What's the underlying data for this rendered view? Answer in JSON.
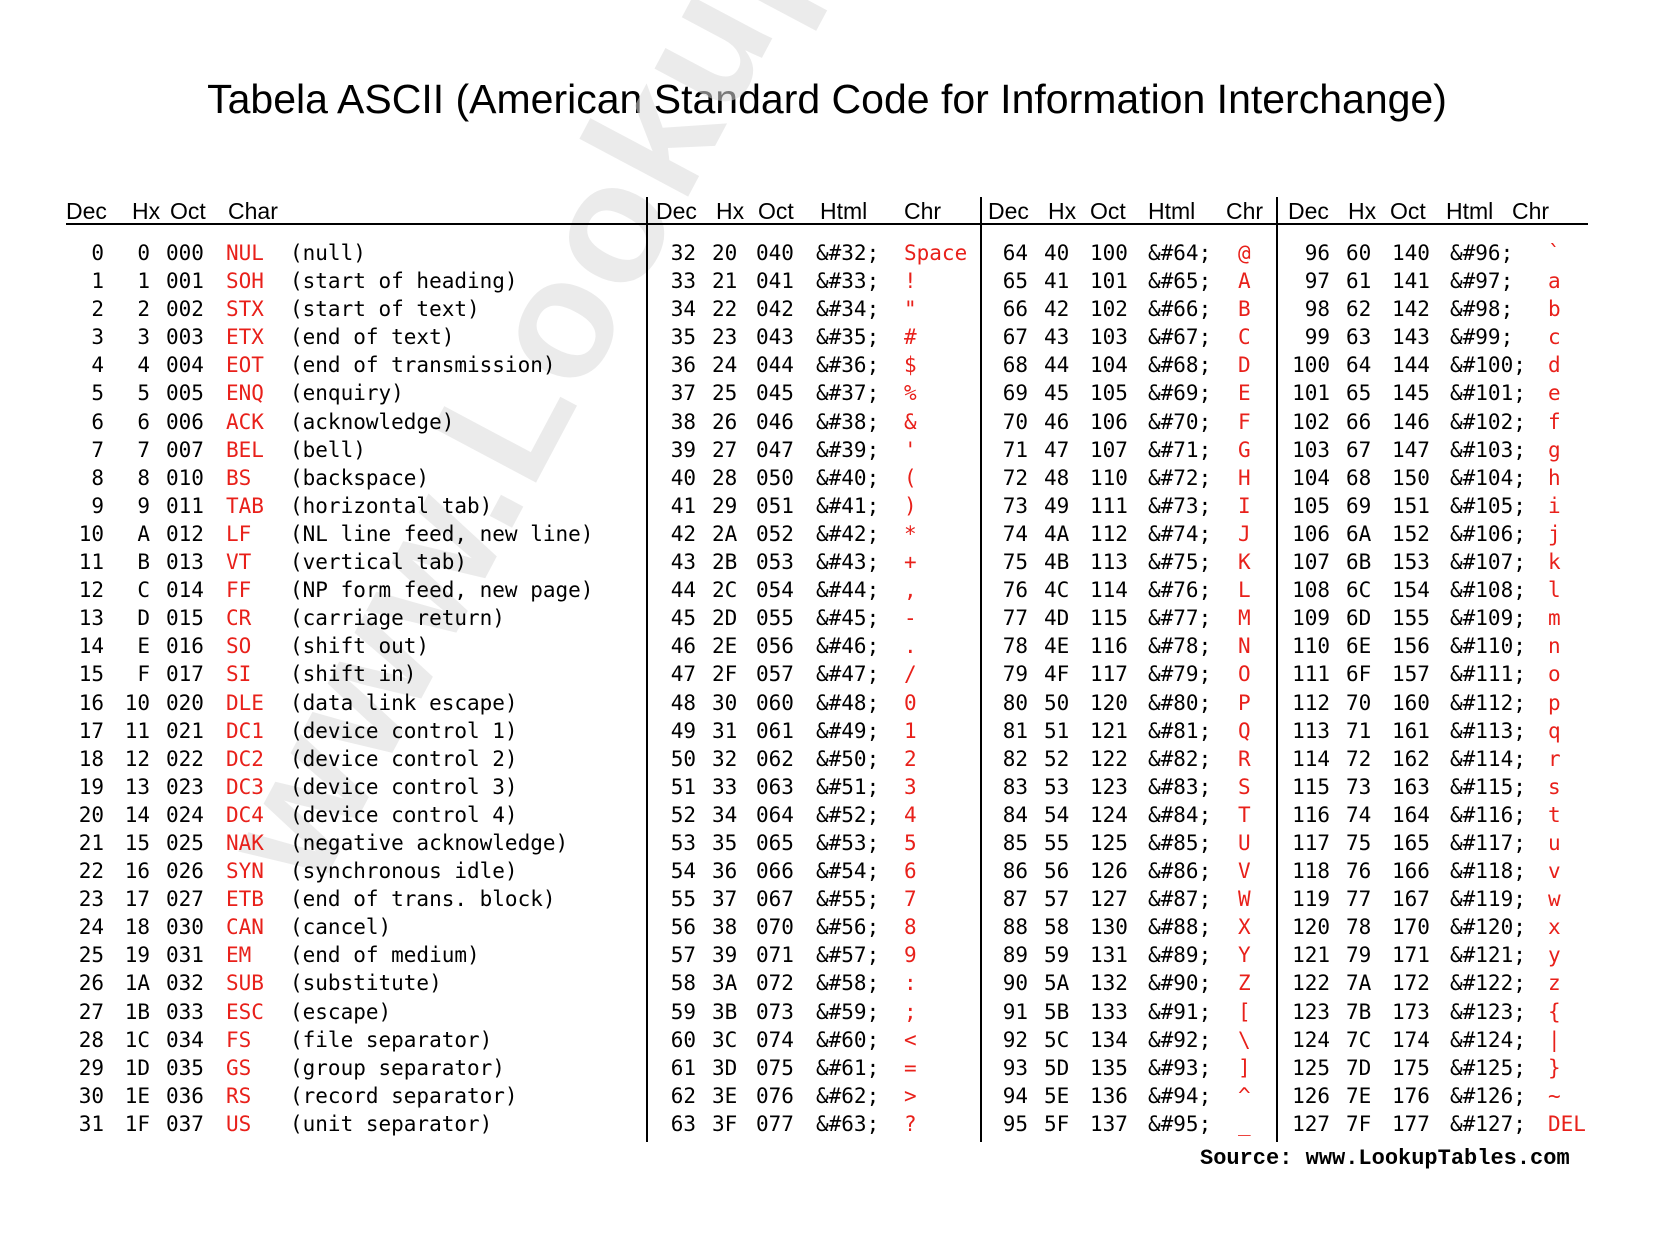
{
  "title": "Tabela ASCII (American Standard Code for Information Interchange)",
  "headers": {
    "g1": [
      "Dec",
      "Hx",
      "Oct",
      "Char"
    ],
    "g2": [
      "Dec",
      "Hx",
      "Oct",
      "Html",
      "Chr"
    ],
    "g3": [
      "Dec",
      "Hx",
      "Oct",
      "Html",
      "Chr"
    ],
    "g4": [
      "Dec",
      "Hx",
      "Oct",
      "Html",
      "Chr"
    ]
  },
  "control_rows": [
    [
      "0",
      "0",
      "000",
      "NUL",
      "(null)"
    ],
    [
      "1",
      "1",
      "001",
      "SOH",
      "(start of heading)"
    ],
    [
      "2",
      "2",
      "002",
      "STX",
      "(start of text)"
    ],
    [
      "3",
      "3",
      "003",
      "ETX",
      "(end of text)"
    ],
    [
      "4",
      "4",
      "004",
      "EOT",
      "(end of transmission)"
    ],
    [
      "5",
      "5",
      "005",
      "ENQ",
      "(enquiry)"
    ],
    [
      "6",
      "6",
      "006",
      "ACK",
      "(acknowledge)"
    ],
    [
      "7",
      "7",
      "007",
      "BEL",
      "(bell)"
    ],
    [
      "8",
      "8",
      "010",
      "BS",
      "(backspace)"
    ],
    [
      "9",
      "9",
      "011",
      "TAB",
      "(horizontal tab)"
    ],
    [
      "10",
      "A",
      "012",
      "LF",
      "(NL line feed, new line)"
    ],
    [
      "11",
      "B",
      "013",
      "VT",
      "(vertical tab)"
    ],
    [
      "12",
      "C",
      "014",
      "FF",
      "(NP form feed, new page)"
    ],
    [
      "13",
      "D",
      "015",
      "CR",
      "(carriage return)"
    ],
    [
      "14",
      "E",
      "016",
      "SO",
      "(shift out)"
    ],
    [
      "15",
      "F",
      "017",
      "SI",
      "(shift in)"
    ],
    [
      "16",
      "10",
      "020",
      "DLE",
      "(data link escape)"
    ],
    [
      "17",
      "11",
      "021",
      "DC1",
      "(device control 1)"
    ],
    [
      "18",
      "12",
      "022",
      "DC2",
      "(device control 2)"
    ],
    [
      "19",
      "13",
      "023",
      "DC3",
      "(device control 3)"
    ],
    [
      "20",
      "14",
      "024",
      "DC4",
      "(device control 4)"
    ],
    [
      "21",
      "15",
      "025",
      "NAK",
      "(negative acknowledge)"
    ],
    [
      "22",
      "16",
      "026",
      "SYN",
      "(synchronous idle)"
    ],
    [
      "23",
      "17",
      "027",
      "ETB",
      "(end of trans. block)"
    ],
    [
      "24",
      "18",
      "030",
      "CAN",
      "(cancel)"
    ],
    [
      "25",
      "19",
      "031",
      "EM",
      "(end of medium)"
    ],
    [
      "26",
      "1A",
      "032",
      "SUB",
      "(substitute)"
    ],
    [
      "27",
      "1B",
      "033",
      "ESC",
      "(escape)"
    ],
    [
      "28",
      "1C",
      "034",
      "FS",
      "(file separator)"
    ],
    [
      "29",
      "1D",
      "035",
      "GS",
      "(group separator)"
    ],
    [
      "30",
      "1E",
      "036",
      "RS",
      "(record separator)"
    ],
    [
      "31",
      "1F",
      "037",
      "US",
      "(unit separator)"
    ]
  ],
  "group2_rows": [
    [
      "32",
      "20",
      "040",
      "&#32;",
      "Space"
    ],
    [
      "33",
      "21",
      "041",
      "&#33;",
      "!"
    ],
    [
      "34",
      "22",
      "042",
      "&#34;",
      "\""
    ],
    [
      "35",
      "23",
      "043",
      "&#35;",
      "#"
    ],
    [
      "36",
      "24",
      "044",
      "&#36;",
      "$"
    ],
    [
      "37",
      "25",
      "045",
      "&#37;",
      "%"
    ],
    [
      "38",
      "26",
      "046",
      "&#38;",
      "&"
    ],
    [
      "39",
      "27",
      "047",
      "&#39;",
      "'"
    ],
    [
      "40",
      "28",
      "050",
      "&#40;",
      "("
    ],
    [
      "41",
      "29",
      "051",
      "&#41;",
      ")"
    ],
    [
      "42",
      "2A",
      "052",
      "&#42;",
      "*"
    ],
    [
      "43",
      "2B",
      "053",
      "&#43;",
      "+"
    ],
    [
      "44",
      "2C",
      "054",
      "&#44;",
      ","
    ],
    [
      "45",
      "2D",
      "055",
      "&#45;",
      "-"
    ],
    [
      "46",
      "2E",
      "056",
      "&#46;",
      "."
    ],
    [
      "47",
      "2F",
      "057",
      "&#47;",
      "/"
    ],
    [
      "48",
      "30",
      "060",
      "&#48;",
      "0"
    ],
    [
      "49",
      "31",
      "061",
      "&#49;",
      "1"
    ],
    [
      "50",
      "32",
      "062",
      "&#50;",
      "2"
    ],
    [
      "51",
      "33",
      "063",
      "&#51;",
      "3"
    ],
    [
      "52",
      "34",
      "064",
      "&#52;",
      "4"
    ],
    [
      "53",
      "35",
      "065",
      "&#53;",
      "5"
    ],
    [
      "54",
      "36",
      "066",
      "&#54;",
      "6"
    ],
    [
      "55",
      "37",
      "067",
      "&#55;",
      "7"
    ],
    [
      "56",
      "38",
      "070",
      "&#56;",
      "8"
    ],
    [
      "57",
      "39",
      "071",
      "&#57;",
      "9"
    ],
    [
      "58",
      "3A",
      "072",
      "&#58;",
      ":"
    ],
    [
      "59",
      "3B",
      "073",
      "&#59;",
      ";"
    ],
    [
      "60",
      "3C",
      "074",
      "&#60;",
      "<"
    ],
    [
      "61",
      "3D",
      "075",
      "&#61;",
      "="
    ],
    [
      "62",
      "3E",
      "076",
      "&#62;",
      ">"
    ],
    [
      "63",
      "3F",
      "077",
      "&#63;",
      "?"
    ]
  ],
  "group3_rows": [
    [
      "64",
      "40",
      "100",
      "&#64;",
      "@"
    ],
    [
      "65",
      "41",
      "101",
      "&#65;",
      "A"
    ],
    [
      "66",
      "42",
      "102",
      "&#66;",
      "B"
    ],
    [
      "67",
      "43",
      "103",
      "&#67;",
      "C"
    ],
    [
      "68",
      "44",
      "104",
      "&#68;",
      "D"
    ],
    [
      "69",
      "45",
      "105",
      "&#69;",
      "E"
    ],
    [
      "70",
      "46",
      "106",
      "&#70;",
      "F"
    ],
    [
      "71",
      "47",
      "107",
      "&#71;",
      "G"
    ],
    [
      "72",
      "48",
      "110",
      "&#72;",
      "H"
    ],
    [
      "73",
      "49",
      "111",
      "&#73;",
      "I"
    ],
    [
      "74",
      "4A",
      "112",
      "&#74;",
      "J"
    ],
    [
      "75",
      "4B",
      "113",
      "&#75;",
      "K"
    ],
    [
      "76",
      "4C",
      "114",
      "&#76;",
      "L"
    ],
    [
      "77",
      "4D",
      "115",
      "&#77;",
      "M"
    ],
    [
      "78",
      "4E",
      "116",
      "&#78;",
      "N"
    ],
    [
      "79",
      "4F",
      "117",
      "&#79;",
      "O"
    ],
    [
      "80",
      "50",
      "120",
      "&#80;",
      "P"
    ],
    [
      "81",
      "51",
      "121",
      "&#81;",
      "Q"
    ],
    [
      "82",
      "52",
      "122",
      "&#82;",
      "R"
    ],
    [
      "83",
      "53",
      "123",
      "&#83;",
      "S"
    ],
    [
      "84",
      "54",
      "124",
      "&#84;",
      "T"
    ],
    [
      "85",
      "55",
      "125",
      "&#85;",
      "U"
    ],
    [
      "86",
      "56",
      "126",
      "&#86;",
      "V"
    ],
    [
      "87",
      "57",
      "127",
      "&#87;",
      "W"
    ],
    [
      "88",
      "58",
      "130",
      "&#88;",
      "X"
    ],
    [
      "89",
      "59",
      "131",
      "&#89;",
      "Y"
    ],
    [
      "90",
      "5A",
      "132",
      "&#90;",
      "Z"
    ],
    [
      "91",
      "5B",
      "133",
      "&#91;",
      "["
    ],
    [
      "92",
      "5C",
      "134",
      "&#92;",
      "\\"
    ],
    [
      "93",
      "5D",
      "135",
      "&#93;",
      "]"
    ],
    [
      "94",
      "5E",
      "136",
      "&#94;",
      "^"
    ],
    [
      "95",
      "5F",
      "137",
      "&#95;",
      "_"
    ]
  ],
  "group4_rows": [
    [
      "96",
      "60",
      "140",
      "&#96;",
      "`"
    ],
    [
      "97",
      "61",
      "141",
      "&#97;",
      "a"
    ],
    [
      "98",
      "62",
      "142",
      "&#98;",
      "b"
    ],
    [
      "99",
      "63",
      "143",
      "&#99;",
      "c"
    ],
    [
      "100",
      "64",
      "144",
      "&#100;",
      "d"
    ],
    [
      "101",
      "65",
      "145",
      "&#101;",
      "e"
    ],
    [
      "102",
      "66",
      "146",
      "&#102;",
      "f"
    ],
    [
      "103",
      "67",
      "147",
      "&#103;",
      "g"
    ],
    [
      "104",
      "68",
      "150",
      "&#104;",
      "h"
    ],
    [
      "105",
      "69",
      "151",
      "&#105;",
      "i"
    ],
    [
      "106",
      "6A",
      "152",
      "&#106;",
      "j"
    ],
    [
      "107",
      "6B",
      "153",
      "&#107;",
      "k"
    ],
    [
      "108",
      "6C",
      "154",
      "&#108;",
      "l"
    ],
    [
      "109",
      "6D",
      "155",
      "&#109;",
      "m"
    ],
    [
      "110",
      "6E",
      "156",
      "&#110;",
      "n"
    ],
    [
      "111",
      "6F",
      "157",
      "&#111;",
      "o"
    ],
    [
      "112",
      "70",
      "160",
      "&#112;",
      "p"
    ],
    [
      "113",
      "71",
      "161",
      "&#113;",
      "q"
    ],
    [
      "114",
      "72",
      "162",
      "&#114;",
      "r"
    ],
    [
      "115",
      "73",
      "163",
      "&#115;",
      "s"
    ],
    [
      "116",
      "74",
      "164",
      "&#116;",
      "t"
    ],
    [
      "117",
      "75",
      "165",
      "&#117;",
      "u"
    ],
    [
      "118",
      "76",
      "166",
      "&#118;",
      "v"
    ],
    [
      "119",
      "77",
      "167",
      "&#119;",
      "w"
    ],
    [
      "120",
      "78",
      "170",
      "&#120;",
      "x"
    ],
    [
      "121",
      "79",
      "171",
      "&#121;",
      "y"
    ],
    [
      "122",
      "7A",
      "172",
      "&#122;",
      "z"
    ],
    [
      "123",
      "7B",
      "173",
      "&#123;",
      "{"
    ],
    [
      "124",
      "7C",
      "174",
      "&#124;",
      "|"
    ],
    [
      "125",
      "7D",
      "175",
      "&#125;",
      "}"
    ],
    [
      "126",
      "7E",
      "176",
      "&#126;",
      "~"
    ],
    [
      "127",
      "7F",
      "177",
      "&#127;",
      "DEL"
    ]
  ],
  "watermark": "www.LookupTables.com",
  "source": "Source:  www.LookupTables.com",
  "colors": {
    "red": "#e8201a",
    "text": "#000000"
  }
}
